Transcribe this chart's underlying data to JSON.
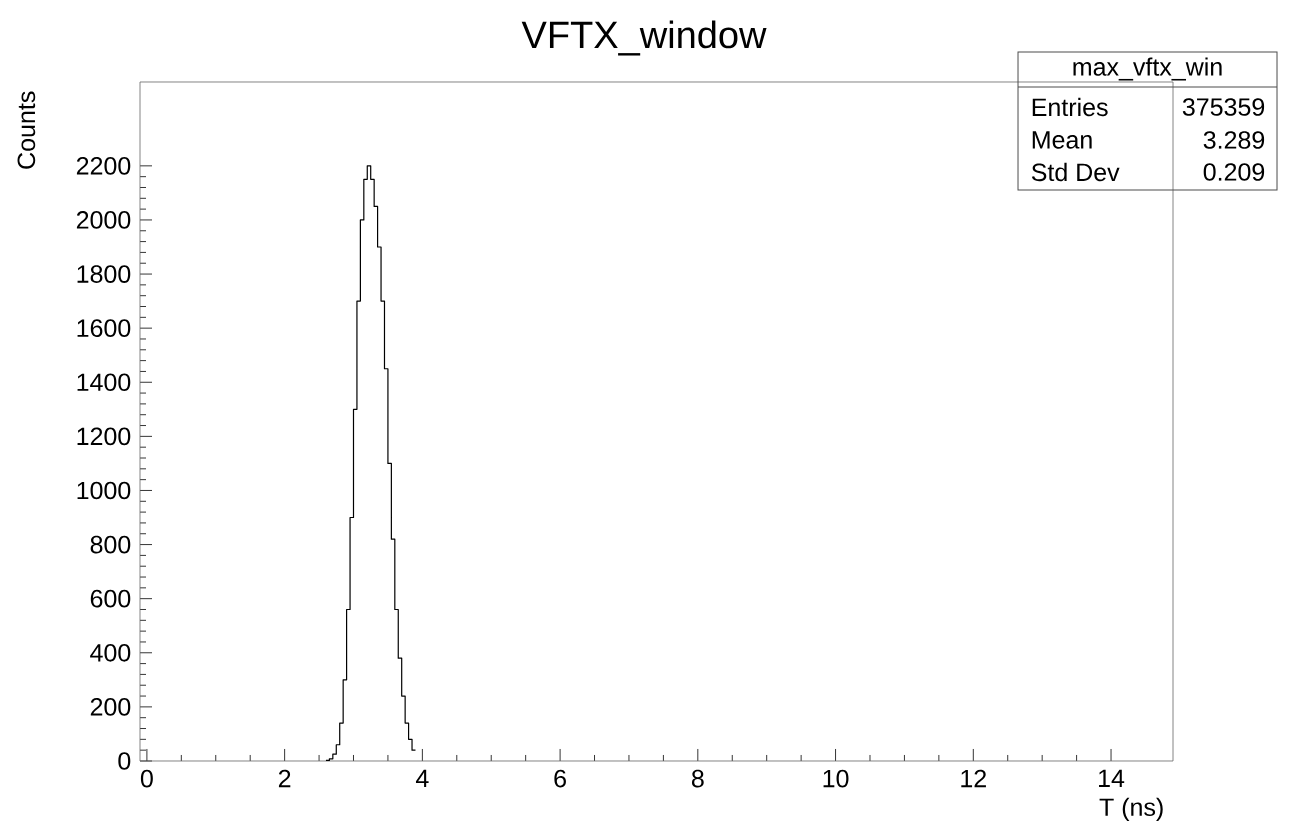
{
  "chart_data": {
    "type": "histogram",
    "title": "VFTX_window",
    "xlabel": "T (ns)",
    "ylabel": "Counts",
    "bins": [
      2.6,
      2.65,
      2.7,
      2.75,
      2.8,
      2.85,
      2.9,
      2.95,
      3.0,
      3.05,
      3.1,
      3.15,
      3.2,
      3.25,
      3.3,
      3.35,
      3.4,
      3.45,
      3.5,
      3.55,
      3.6,
      3.65,
      3.7,
      3.75,
      3.8,
      3.85,
      3.9
    ],
    "values": [
      2,
      8,
      25,
      60,
      140,
      300,
      560,
      900,
      1300,
      1700,
      2000,
      2150,
      2200,
      2150,
      2050,
      1900,
      1700,
      1450,
      1100,
      820,
      560,
      380,
      240,
      140,
      80,
      40
    ],
    "color": "#000000",
    "xlim": [
      -0.1,
      14.9
    ],
    "ylim": [
      0,
      2510
    ],
    "xticks": [
      0,
      2,
      4,
      6,
      8,
      10,
      12,
      14
    ],
    "yticks": [
      0,
      200,
      400,
      600,
      800,
      1000,
      1200,
      1400,
      1600,
      1800,
      2000,
      2200
    ],
    "annotations": [
      "max_vftx_win",
      "Entries",
      "375359",
      "Mean",
      "3.289",
      "Std Dev",
      "0.209"
    ]
  }
}
